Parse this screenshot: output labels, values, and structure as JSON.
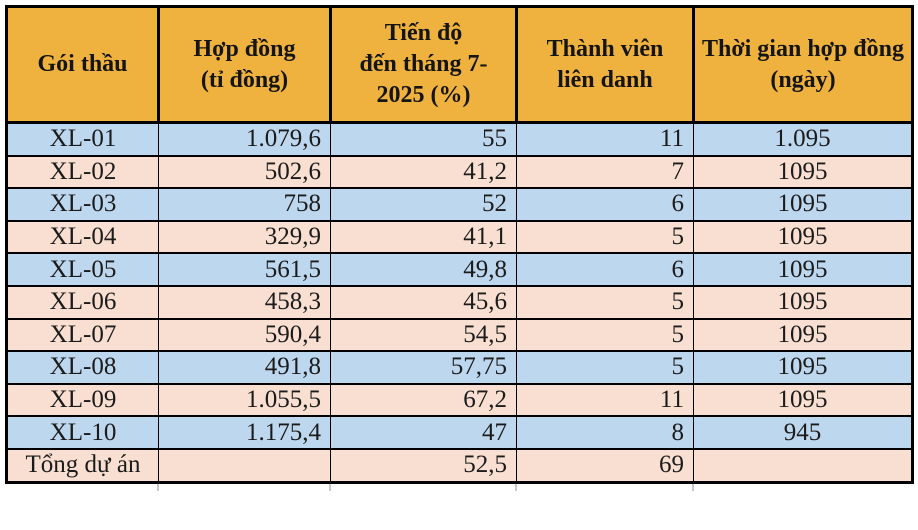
{
  "colors": {
    "header_bg": "#F0B23E",
    "row_blue": "#BDD7EE",
    "row_pink": "#F8DFD1",
    "border": "#000000",
    "gridline_tick": "#C8C8C8"
  },
  "table": {
    "columns": [
      {
        "label": "Gói thầu",
        "align": "center"
      },
      {
        "label": "Hợp đồng\n(tỉ đồng)",
        "align": "right"
      },
      {
        "label": "Tiến độ\nđến tháng 7-\n2025 (%)",
        "align": "right"
      },
      {
        "label": "Thành viên\nliên danh",
        "align": "right"
      },
      {
        "label": "Thời gian hợp đồng\n(ngày)",
        "align": "center"
      }
    ],
    "rows": [
      {
        "band": "blue",
        "cells": [
          "XL-01",
          "1.079,6",
          "55",
          "11",
          "1.095"
        ]
      },
      {
        "band": "pink",
        "cells": [
          "XL-02",
          "502,6",
          "41,2",
          "7",
          "1095"
        ]
      },
      {
        "band": "blue",
        "cells": [
          "XL-03",
          "758",
          "52",
          "6",
          "1095"
        ]
      },
      {
        "band": "pink",
        "cells": [
          "XL-04",
          "329,9",
          "41,1",
          "5",
          "1095"
        ]
      },
      {
        "band": "blue",
        "cells": [
          "XL-05",
          "561,5",
          "49,8",
          "6",
          "1095"
        ]
      },
      {
        "band": "pink",
        "cells": [
          "XL-06",
          "458,3",
          "45,6",
          "5",
          "1095"
        ]
      },
      {
        "band": "pink",
        "cells": [
          "XL-07",
          "590,4",
          "54,5",
          "5",
          "1095"
        ]
      },
      {
        "band": "blue",
        "cells": [
          "XL-08",
          "491,8",
          "57,75",
          "5",
          "1095"
        ]
      },
      {
        "band": "pink",
        "cells": [
          "XL-09",
          "1.055,5",
          "67,2",
          "11",
          "1095"
        ]
      },
      {
        "band": "blue",
        "cells": [
          "XL-10",
          "1.175,4",
          "47",
          "8",
          "945"
        ]
      },
      {
        "band": "pink",
        "cells": [
          "Tổng dự án",
          "",
          "52,5",
          "69",
          ""
        ]
      }
    ]
  },
  "chart_data": {
    "type": "table",
    "columns": [
      "Gói thầu",
      "Hợp đồng (tỉ đồng)",
      "Tiến độ đến tháng 7-2025 (%)",
      "Thành viên liên danh",
      "Thời gian hợp đồng (ngày)"
    ],
    "rows": [
      [
        "XL-01",
        1079.6,
        55,
        11,
        1095
      ],
      [
        "XL-02",
        502.6,
        41.2,
        7,
        1095
      ],
      [
        "XL-03",
        758,
        52,
        6,
        1095
      ],
      [
        "XL-04",
        329.9,
        41.1,
        5,
        1095
      ],
      [
        "XL-05",
        561.5,
        49.8,
        6,
        1095
      ],
      [
        "XL-06",
        458.3,
        45.6,
        5,
        1095
      ],
      [
        "XL-07",
        590.4,
        54.5,
        5,
        1095
      ],
      [
        "XL-08",
        491.8,
        57.75,
        5,
        1095
      ],
      [
        "XL-09",
        1055.5,
        67.2,
        11,
        1095
      ],
      [
        "XL-10",
        1175.4,
        47,
        8,
        945
      ],
      [
        "Tổng dự án",
        null,
        52.5,
        69,
        null
      ]
    ],
    "notes": "Values shown with Vietnamese number formatting (dot = thousands, comma = decimal)"
  }
}
